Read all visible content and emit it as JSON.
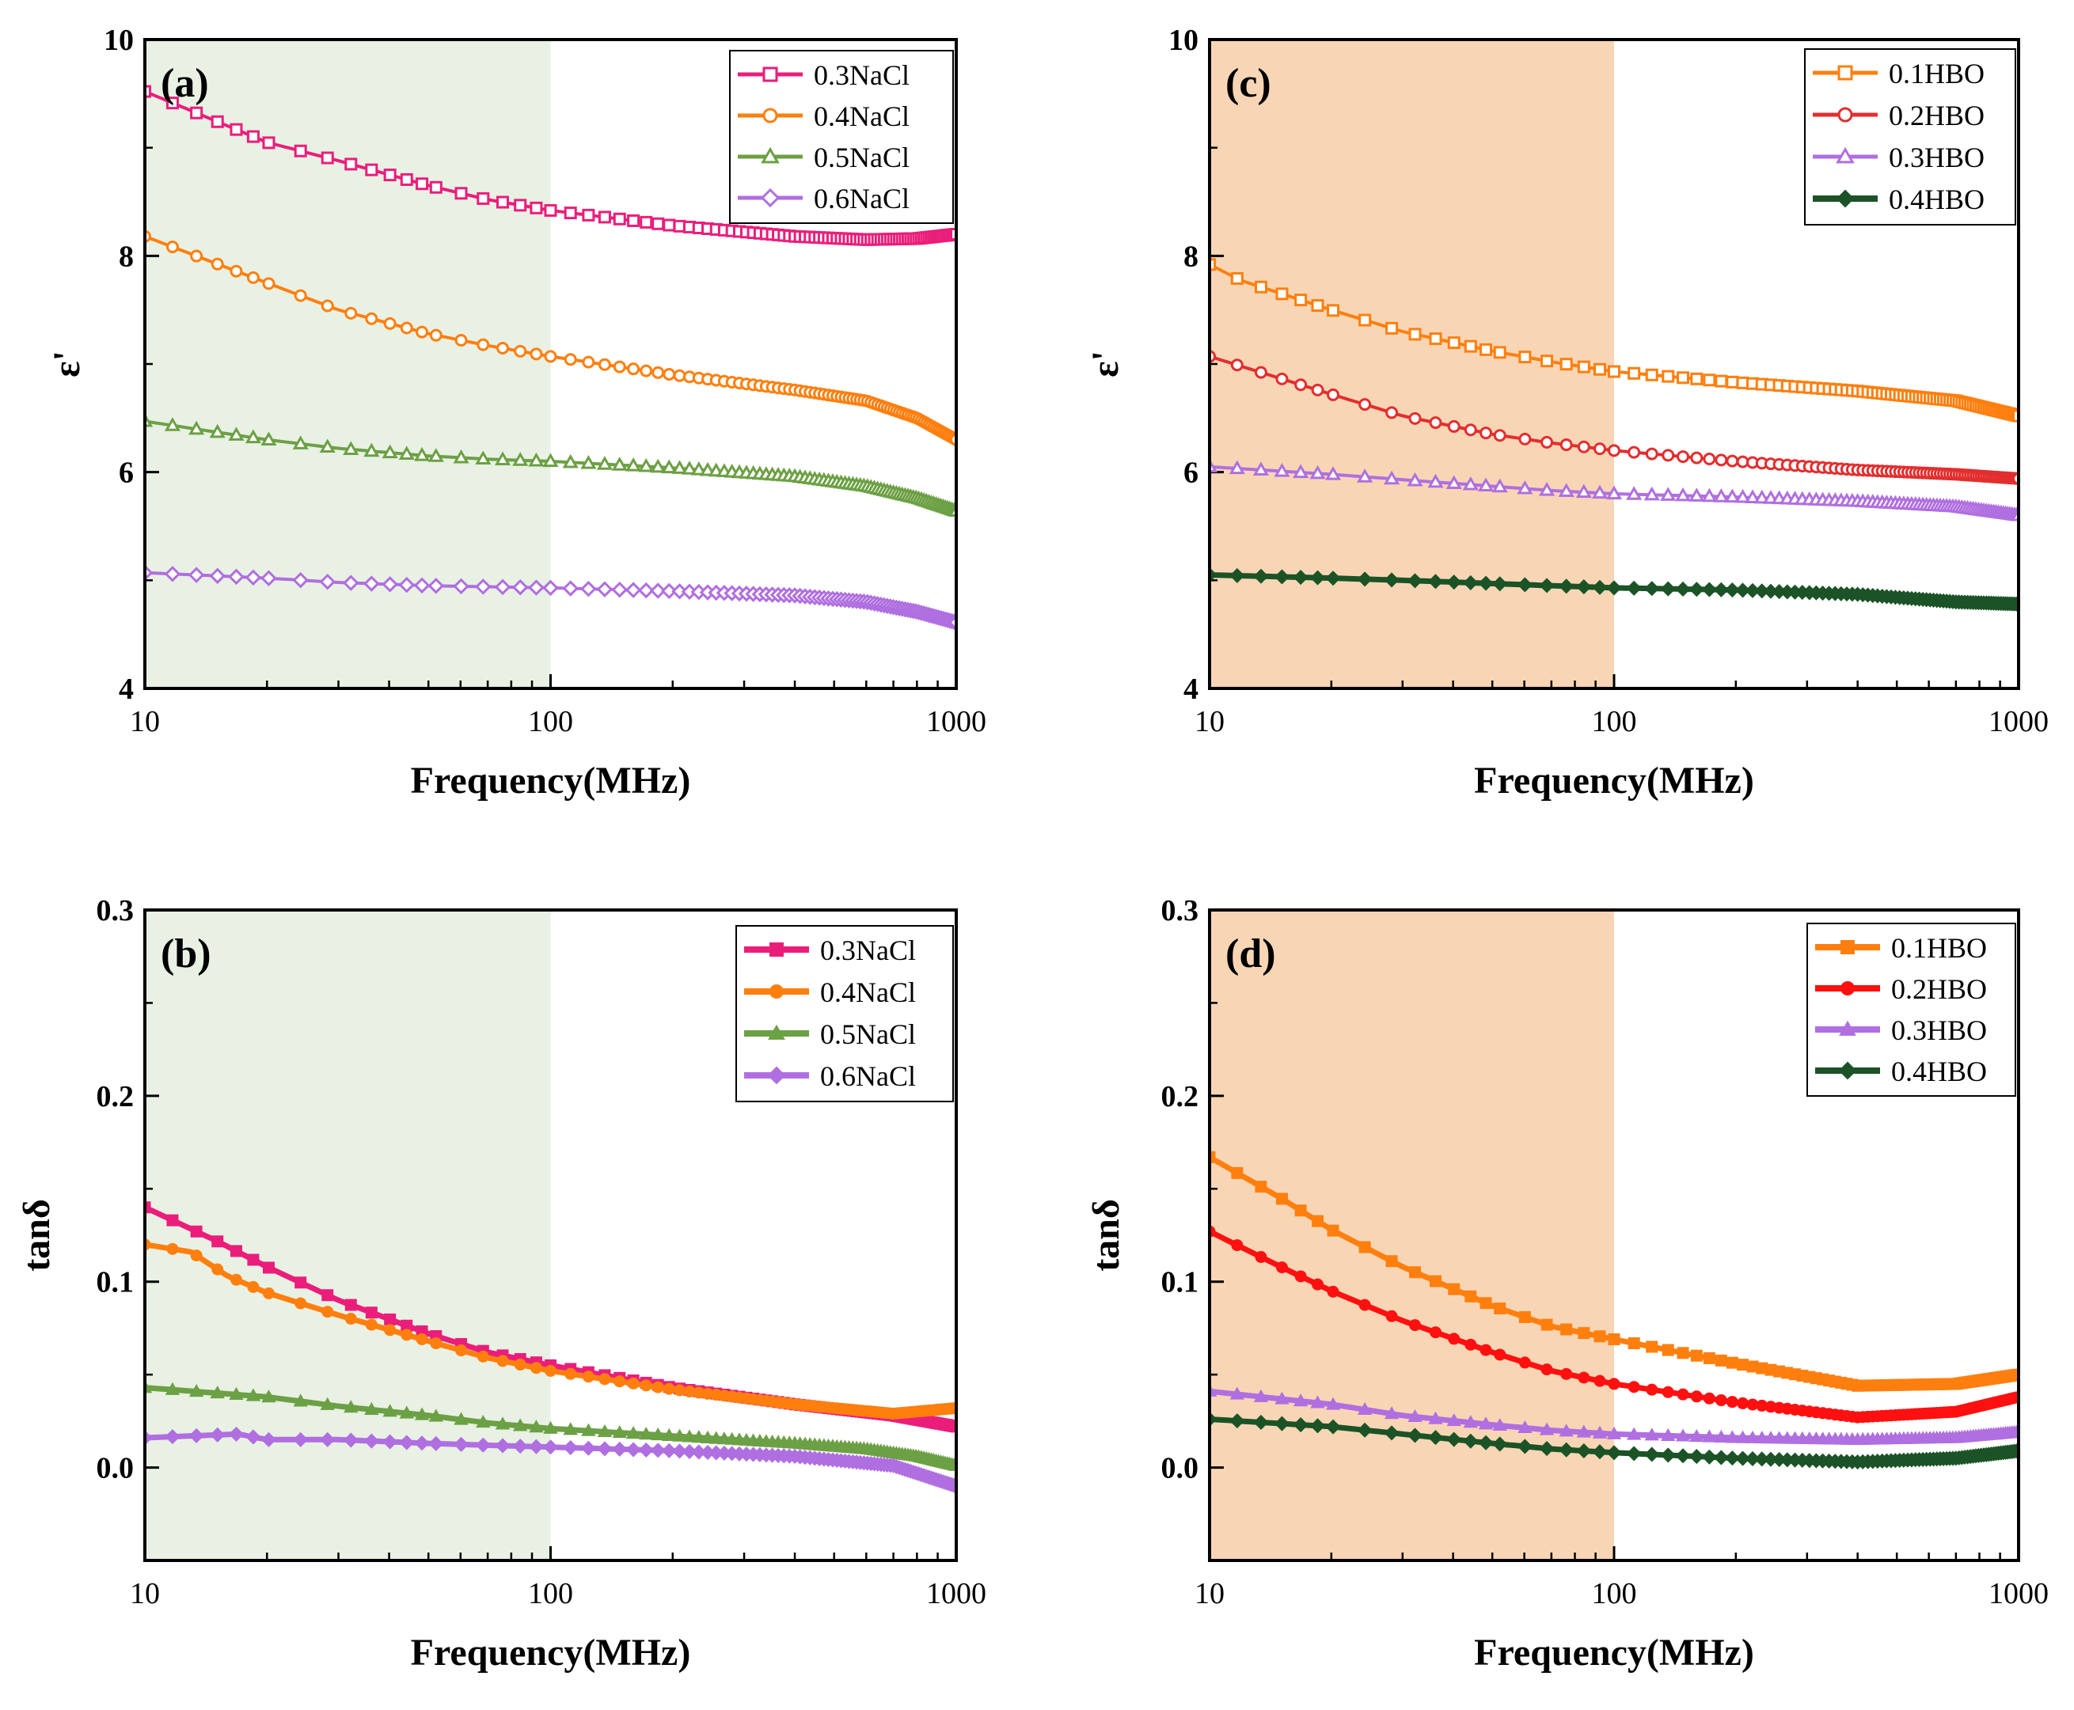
{
  "chart_data": [
    {
      "id": "a",
      "type": "line",
      "panel_label": "(a)",
      "xlabel": "Frequency(MHz)",
      "ylabel": "ε'",
      "xscale": "log",
      "xlim": [
        10,
        1000
      ],
      "ylim": [
        4,
        10
      ],
      "xticks": [
        10,
        100,
        1000
      ],
      "xtick_labels": [
        "10",
        "100",
        "1000"
      ],
      "yticks": [
        4,
        6,
        8,
        10
      ],
      "ytick_labels": [
        "4",
        "6",
        "8",
        "10"
      ],
      "shaded_region": {
        "x": [
          10,
          100
        ],
        "color": "#e8f1e4"
      },
      "legend_position": "top-right",
      "series": [
        {
          "name": "0.3NaCl",
          "color": "#ea1e7a",
          "marker": "square-open",
          "points": [
            [
              10,
              9.52
            ],
            [
              20,
              9.05
            ],
            [
              30,
              8.88
            ],
            [
              50,
              8.65
            ],
            [
              70,
              8.52
            ],
            [
              100,
              8.42
            ],
            [
              200,
              8.28
            ],
            [
              400,
              8.18
            ],
            [
              600,
              8.15
            ],
            [
              800,
              8.16
            ],
            [
              1000,
              8.2
            ]
          ]
        },
        {
          "name": "0.4NaCl",
          "color": "#ff7f0e",
          "marker": "circle-open",
          "points": [
            [
              10,
              8.18
            ],
            [
              20,
              7.75
            ],
            [
              30,
              7.5
            ],
            [
              50,
              7.28
            ],
            [
              70,
              7.17
            ],
            [
              100,
              7.07
            ],
            [
              200,
              6.9
            ],
            [
              400,
              6.76
            ],
            [
              600,
              6.66
            ],
            [
              800,
              6.5
            ],
            [
              1000,
              6.3
            ]
          ]
        },
        {
          "name": "0.5NaCl",
          "color": "#6ca044",
          "marker": "triangle-open",
          "points": [
            [
              10,
              6.47
            ],
            [
              20,
              6.3
            ],
            [
              30,
              6.22
            ],
            [
              50,
              6.15
            ],
            [
              70,
              6.12
            ],
            [
              100,
              6.1
            ],
            [
              200,
              6.04
            ],
            [
              400,
              5.96
            ],
            [
              600,
              5.87
            ],
            [
              800,
              5.76
            ],
            [
              1000,
              5.64
            ]
          ]
        },
        {
          "name": "0.6NaCl",
          "color": "#b06fe0",
          "marker": "diamond-open",
          "points": [
            [
              10,
              5.07
            ],
            [
              20,
              5.02
            ],
            [
              30,
              4.98
            ],
            [
              50,
              4.95
            ],
            [
              70,
              4.94
            ],
            [
              100,
              4.93
            ],
            [
              200,
              4.9
            ],
            [
              400,
              4.86
            ],
            [
              600,
              4.8
            ],
            [
              800,
              4.71
            ],
            [
              1000,
              4.61
            ]
          ]
        }
      ]
    },
    {
      "id": "b",
      "type": "line",
      "panel_label": "(b)",
      "xlabel": "Frequency(MHz)",
      "ylabel": "tanδ",
      "xscale": "log",
      "xlim": [
        10,
        1000
      ],
      "ylim": [
        -0.05,
        0.3
      ],
      "xticks": [
        10,
        100,
        1000
      ],
      "xtick_labels": [
        "10",
        "100",
        "1000"
      ],
      "yticks": [
        0.0,
        0.1,
        0.2,
        0.3
      ],
      "ytick_labels": [
        "0.0",
        "0.1",
        "0.2",
        "0.3"
      ],
      "shaded_region": {
        "x": [
          10,
          100
        ],
        "color": "#e8f1e4"
      },
      "legend_position": "top-right",
      "series": [
        {
          "name": "0.3NaCl",
          "color": "#ea1e7a",
          "marker": "square",
          "points": [
            [
              10,
              0.14
            ],
            [
              15,
              0.122
            ],
            [
              20,
              0.108
            ],
            [
              30,
              0.09
            ],
            [
              50,
              0.072
            ],
            [
              70,
              0.062
            ],
            [
              100,
              0.055
            ],
            [
              200,
              0.043
            ],
            [
              400,
              0.034
            ],
            [
              700,
              0.028
            ],
            [
              1000,
              0.022
            ]
          ]
        },
        {
          "name": "0.4NaCl",
          "color": "#ff7f0e",
          "marker": "circle",
          "points": [
            [
              10,
              0.12
            ],
            [
              13,
              0.116
            ],
            [
              16,
              0.103
            ],
            [
              20,
              0.094
            ],
            [
              30,
              0.082
            ],
            [
              50,
              0.068
            ],
            [
              70,
              0.059
            ],
            [
              100,
              0.052
            ],
            [
              200,
              0.042
            ],
            [
              400,
              0.034
            ],
            [
              700,
              0.029
            ],
            [
              1000,
              0.032
            ]
          ]
        },
        {
          "name": "0.5NaCl",
          "color": "#6ca044",
          "marker": "triangle",
          "points": [
            [
              10,
              0.043
            ],
            [
              20,
              0.038
            ],
            [
              30,
              0.033
            ],
            [
              50,
              0.028
            ],
            [
              70,
              0.024
            ],
            [
              100,
              0.021
            ],
            [
              200,
              0.017
            ],
            [
              400,
              0.013
            ],
            [
              600,
              0.01
            ],
            [
              800,
              0.006
            ],
            [
              1000,
              0.001
            ]
          ]
        },
        {
          "name": "0.6NaCl",
          "color": "#b06fe0",
          "marker": "diamond",
          "points": [
            [
              10,
              0.016
            ],
            [
              13,
              0.017
            ],
            [
              17,
              0.018
            ],
            [
              20,
              0.015
            ],
            [
              30,
              0.015
            ],
            [
              50,
              0.013
            ],
            [
              70,
              0.012
            ],
            [
              100,
              0.011
            ],
            [
              200,
              0.009
            ],
            [
              400,
              0.006
            ],
            [
              700,
              0.001
            ],
            [
              1000,
              -0.01
            ]
          ]
        }
      ]
    },
    {
      "id": "c",
      "type": "line",
      "panel_label": "(c)",
      "xlabel": "Frequency(MHz)",
      "ylabel": "ε'",
      "xscale": "log",
      "xlim": [
        10,
        1000
      ],
      "ylim": [
        4,
        10
      ],
      "xticks": [
        10,
        100,
        1000
      ],
      "xtick_labels": [
        "10",
        "100",
        "1000"
      ],
      "yticks": [
        4,
        6,
        8,
        10
      ],
      "ytick_labels": [
        "4",
        "6",
        "8",
        "10"
      ],
      "shaded_region": {
        "x": [
          10,
          100
        ],
        "color": "#f8d6b5"
      },
      "legend_position": "top-right",
      "series": [
        {
          "name": "0.1HBO",
          "color": "#ff7f0e",
          "marker": "square-open",
          "points": [
            [
              10,
              7.92
            ],
            [
              12,
              7.77
            ],
            [
              20,
              7.5
            ],
            [
              30,
              7.3
            ],
            [
              50,
              7.12
            ],
            [
              70,
              7.02
            ],
            [
              100,
              6.93
            ],
            [
              200,
              6.83
            ],
            [
              400,
              6.75
            ],
            [
              700,
              6.66
            ],
            [
              1000,
              6.52
            ]
          ]
        },
        {
          "name": "0.2HBO",
          "color": "#e32e2e",
          "marker": "circle-open",
          "points": [
            [
              10,
              7.07
            ],
            [
              20,
              6.72
            ],
            [
              30,
              6.52
            ],
            [
              50,
              6.35
            ],
            [
              70,
              6.27
            ],
            [
              100,
              6.2
            ],
            [
              200,
              6.1
            ],
            [
              400,
              6.02
            ],
            [
              700,
              5.98
            ],
            [
              1000,
              5.94
            ]
          ]
        },
        {
          "name": "0.3HBO",
          "color": "#b06fe0",
          "marker": "triangle-open",
          "points": [
            [
              10,
              6.05
            ],
            [
              20,
              5.98
            ],
            [
              30,
              5.93
            ],
            [
              50,
              5.87
            ],
            [
              70,
              5.83
            ],
            [
              100,
              5.8
            ],
            [
              200,
              5.77
            ],
            [
              400,
              5.73
            ],
            [
              700,
              5.68
            ],
            [
              1000,
              5.6
            ]
          ]
        },
        {
          "name": "0.4HBO",
          "color": "#1b5326",
          "marker": "diamond",
          "points": [
            [
              10,
              5.05
            ],
            [
              20,
              5.02
            ],
            [
              30,
              5.0
            ],
            [
              50,
              4.97
            ],
            [
              70,
              4.95
            ],
            [
              100,
              4.93
            ],
            [
              200,
              4.91
            ],
            [
              400,
              4.87
            ],
            [
              700,
              4.8
            ],
            [
              1000,
              4.78
            ]
          ]
        }
      ]
    },
    {
      "id": "d",
      "type": "line",
      "panel_label": "(d)",
      "xlabel": "Frequency(MHz)",
      "ylabel": "tanδ",
      "xscale": "log",
      "xlim": [
        10,
        1000
      ],
      "ylim": [
        -0.05,
        0.3
      ],
      "xticks": [
        10,
        100,
        1000
      ],
      "xtick_labels": [
        "10",
        "100",
        "1000"
      ],
      "yticks": [
        0.0,
        0.1,
        0.2,
        0.3
      ],
      "ytick_labels": [
        "0.0",
        "0.1",
        "0.2",
        "0.3"
      ],
      "shaded_region": {
        "x": [
          10,
          100
        ],
        "color": "#f8d6b5"
      },
      "legend_position": "top-right",
      "series": [
        {
          "name": "0.1HBO",
          "color": "#ff7f0e",
          "marker": "square",
          "points": [
            [
              10,
              0.167
            ],
            [
              15,
              0.145
            ],
            [
              20,
              0.128
            ],
            [
              30,
              0.108
            ],
            [
              50,
              0.087
            ],
            [
              70,
              0.076
            ],
            [
              100,
              0.069
            ],
            [
              200,
              0.056
            ],
            [
              400,
              0.044
            ],
            [
              700,
              0.045
            ],
            [
              1000,
              0.05
            ]
          ]
        },
        {
          "name": "0.2HBO",
          "color": "#ff1010",
          "marker": "circle",
          "points": [
            [
              10,
              0.127
            ],
            [
              15,
              0.108
            ],
            [
              20,
              0.095
            ],
            [
              30,
              0.079
            ],
            [
              50,
              0.062
            ],
            [
              70,
              0.052
            ],
            [
              100,
              0.045
            ],
            [
              200,
              0.035
            ],
            [
              400,
              0.027
            ],
            [
              700,
              0.03
            ],
            [
              1000,
              0.038
            ]
          ]
        },
        {
          "name": "0.3HBO",
          "color": "#b06fe0",
          "marker": "triangle",
          "points": [
            [
              10,
              0.041
            ],
            [
              20,
              0.034
            ],
            [
              30,
              0.028
            ],
            [
              50,
              0.023
            ],
            [
              70,
              0.02
            ],
            [
              100,
              0.018
            ],
            [
              200,
              0.016
            ],
            [
              400,
              0.015
            ],
            [
              700,
              0.016
            ],
            [
              1000,
              0.019
            ]
          ]
        },
        {
          "name": "0.4HBO",
          "color": "#1b5326",
          "marker": "diamond",
          "points": [
            [
              10,
              0.026
            ],
            [
              20,
              0.022
            ],
            [
              30,
              0.018
            ],
            [
              50,
              0.013
            ],
            [
              70,
              0.01
            ],
            [
              100,
              0.008
            ],
            [
              200,
              0.005
            ],
            [
              400,
              0.003
            ],
            [
              700,
              0.005
            ],
            [
              1000,
              0.009
            ]
          ]
        }
      ]
    }
  ]
}
